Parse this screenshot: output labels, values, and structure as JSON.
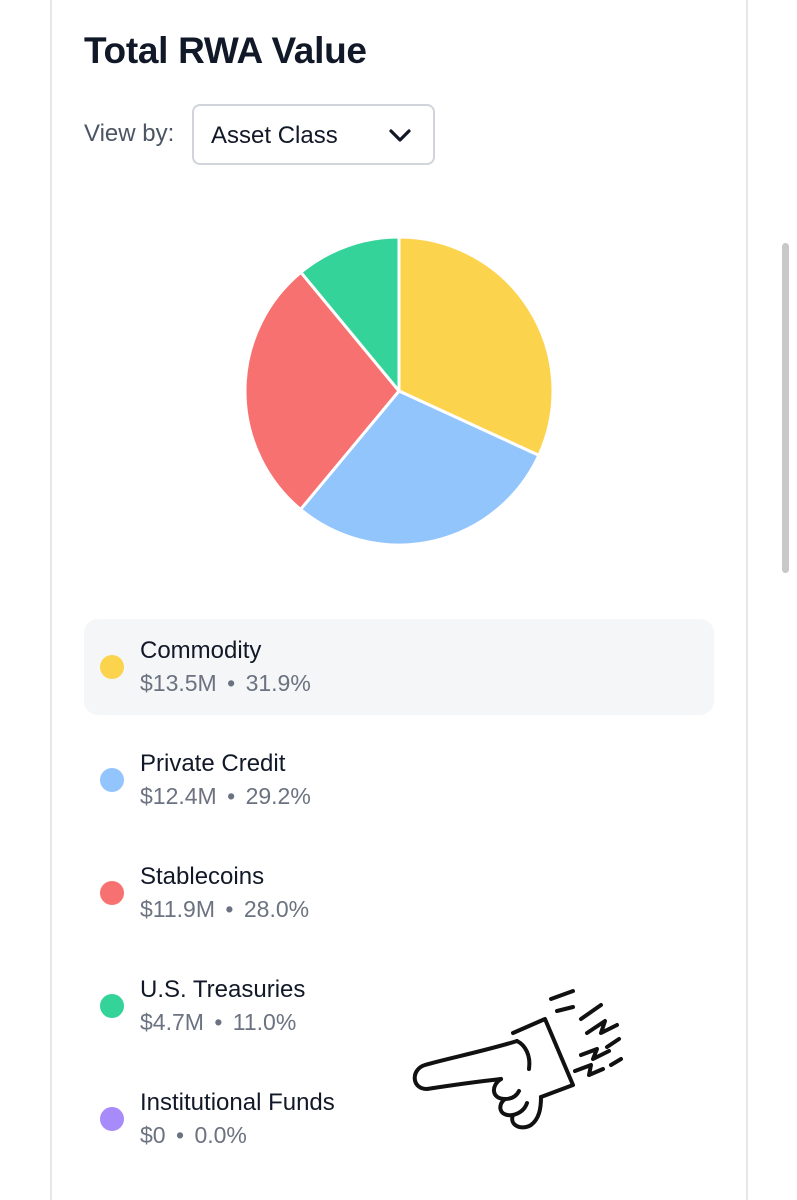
{
  "header": {
    "title": "Total RWA Value"
  },
  "controls": {
    "view_by_label": "View by:",
    "view_by_value": "Asset Class"
  },
  "colors": {
    "commodity": "#fcd34d",
    "private_credit": "#93c5fd",
    "stablecoins": "#f87171",
    "treasuries": "#34d399",
    "institutional_funds": "#a78bfa"
  },
  "chart_data": {
    "type": "pie",
    "categories": [
      "Commodity",
      "Private Credit",
      "Stablecoins",
      "U.S. Treasuries",
      "Institutional Funds"
    ],
    "values": [
      31.9,
      29.2,
      28.0,
      11.0,
      0.0
    ],
    "unit": "%",
    "amounts": [
      "$13.5M",
      "$12.4M",
      "$11.9M",
      "$4.7M",
      "$0"
    ],
    "colors": [
      "#fcd34d",
      "#93c5fd",
      "#f87171",
      "#34d399",
      "#a78bfa"
    ]
  },
  "legend": [
    {
      "name": "Commodity",
      "amount": "$13.5M",
      "pct": "31.9%",
      "color": "#fcd34d",
      "active": true
    },
    {
      "name": "Private Credit",
      "amount": "$12.4M",
      "pct": "29.2%",
      "color": "#93c5fd",
      "active": false
    },
    {
      "name": "Stablecoins",
      "amount": "$11.9M",
      "pct": "28.0%",
      "color": "#f87171",
      "active": false
    },
    {
      "name": "U.S. Treasuries",
      "amount": "$4.7M",
      "pct": "11.0%",
      "color": "#34d399",
      "active": false
    },
    {
      "name": "Institutional Funds",
      "amount": "$0",
      "pct": "0.0%",
      "color": "#a78bfa",
      "active": false
    }
  ],
  "overlay": {
    "icon": "pointing-hand-icon"
  }
}
